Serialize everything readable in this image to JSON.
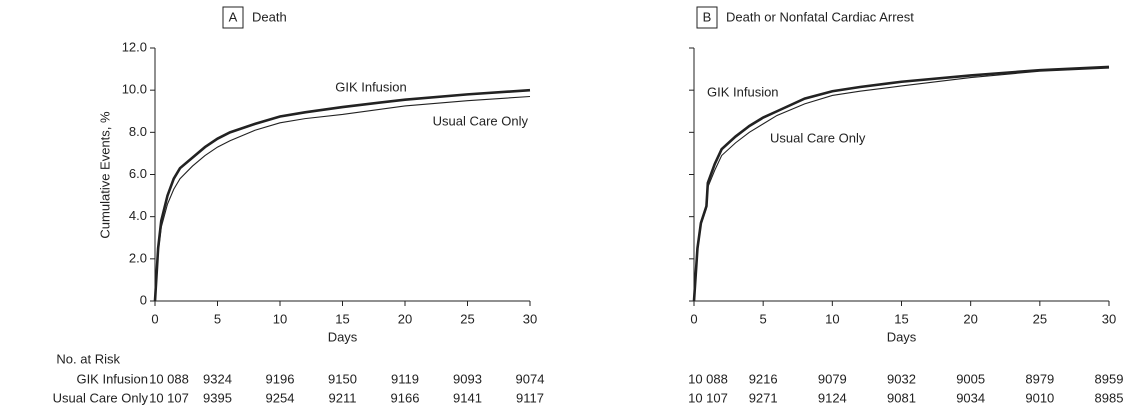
{
  "chart_data": [
    {
      "type": "line",
      "panel": "A",
      "title": "Death",
      "ylabel": "Cumulative Events, %",
      "xlabel": "Days",
      "xlim": [
        0,
        30
      ],
      "xticks": [
        0,
        5,
        10,
        15,
        20,
        25,
        30
      ],
      "ylim": [
        0,
        12
      ],
      "yticks": [
        0,
        {
          "value": 2,
          "label": "2.0"
        },
        {
          "value": 4,
          "label": "4.0"
        },
        {
          "value": 6,
          "label": "6.0"
        },
        {
          "value": 8,
          "label": "8.0"
        },
        {
          "value": 10,
          "label": "10.0"
        },
        {
          "value": 12,
          "label": "12.0"
        }
      ],
      "x": [
        0,
        0.25,
        0.5,
        1,
        1.5,
        2,
        3,
        4,
        5,
        6,
        8,
        10,
        12,
        15,
        20,
        25,
        30
      ],
      "series": [
        {
          "name": "GIK Infusion",
          "color": "#222222",
          "values": [
            0,
            2.5,
            3.8,
            5.0,
            5.8,
            6.3,
            6.8,
            7.3,
            7.7,
            8.0,
            8.4,
            8.75,
            8.95,
            9.2,
            9.55,
            9.8,
            10.0
          ]
        },
        {
          "name": "Usual Care Only",
          "color": "#222222",
          "values": [
            0,
            2.3,
            3.5,
            4.6,
            5.3,
            5.8,
            6.4,
            6.9,
            7.3,
            7.6,
            8.1,
            8.45,
            8.65,
            8.85,
            9.25,
            9.5,
            9.7
          ]
        }
      ],
      "risk_table": {
        "title": "No. at Risk",
        "rows": [
          {
            "name": "GIK Infusion",
            "values": [
              "10 088",
              "9324",
              "9196",
              "9150",
              "9119",
              "9093",
              "9074"
            ]
          },
          {
            "name": "Usual Care Only",
            "values": [
              "10 107",
              "9395",
              "9254",
              "9211",
              "9166",
              "9141",
              "9117"
            ]
          }
        ]
      }
    },
    {
      "type": "line",
      "panel": "B",
      "title": "Death or Nonfatal Cardiac Arrest",
      "xlabel": "Days",
      "xlim": [
        0,
        30
      ],
      "xticks": [
        0,
        5,
        10,
        15,
        20,
        25,
        30
      ],
      "ylim": [
        0,
        12
      ],
      "yticks": [
        0,
        2,
        4,
        6,
        8,
        10,
        12
      ],
      "x": [
        0,
        0.25,
        0.5,
        0.9,
        1,
        1.5,
        2,
        3,
        4,
        5,
        6,
        8,
        10,
        12,
        15,
        20,
        25,
        30
      ],
      "series": [
        {
          "name": "GIK Infusion",
          "color": "#222222",
          "values": [
            0,
            2.5,
            3.7,
            4.5,
            5.6,
            6.5,
            7.2,
            7.8,
            8.3,
            8.7,
            9.0,
            9.6,
            9.95,
            10.15,
            10.4,
            10.7,
            10.95,
            11.1
          ]
        },
        {
          "name": "Usual Care Only",
          "color": "#222222",
          "values": [
            0,
            2.4,
            3.6,
            4.4,
            5.4,
            6.2,
            6.9,
            7.5,
            8.0,
            8.4,
            8.8,
            9.35,
            9.75,
            9.95,
            10.2,
            10.6,
            10.9,
            11.05
          ]
        }
      ],
      "risk_table": {
        "rows": [
          {
            "values": [
              "10 088",
              "9216",
              "9079",
              "9032",
              "9005",
              "8979",
              "8959"
            ]
          },
          {
            "values": [
              "10 107",
              "9271",
              "9124",
              "9081",
              "9034",
              "9010",
              "8985"
            ]
          }
        ]
      }
    }
  ]
}
